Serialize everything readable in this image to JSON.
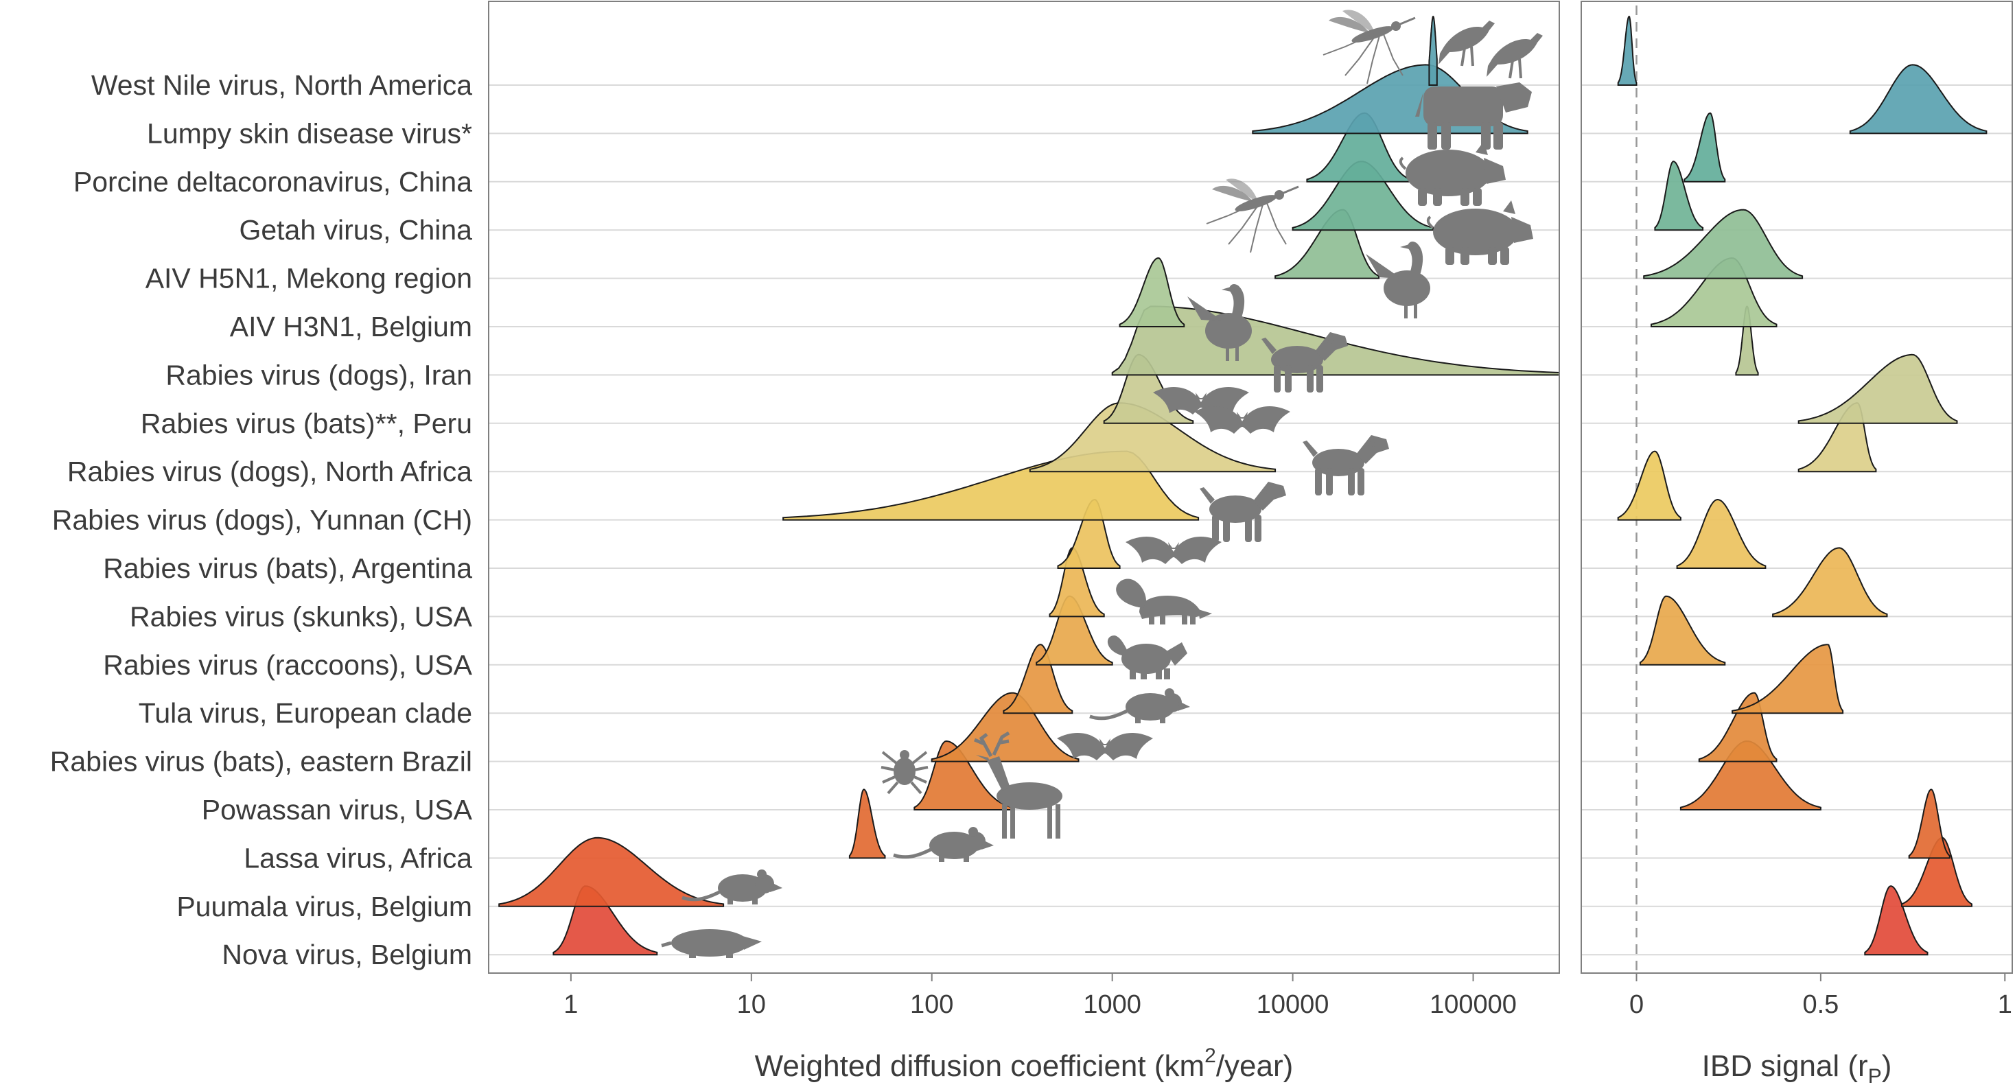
{
  "chart_data": {
    "type": "ridgeline",
    "colors": {
      "gridline": "#d9d9d9",
      "panel_border": "#7f7f7f",
      "silhouette": "#7b7b7b",
      "text": "#3b3b3b",
      "palette": [
        "#5aa2b0",
        "#5aa2b0",
        "#63ae9a",
        "#70b396",
        "#8fbe95",
        "#a9c896",
        "#b6c592",
        "#c9cb93",
        "#dccf8a",
        "#ebca5f",
        "#ecc25e",
        "#ebb656",
        "#e8a84c",
        "#e69742",
        "#e38a3b",
        "#e27a34",
        "#e26a32",
        "#e55a30",
        "#e24b3a"
      ]
    },
    "rows": [
      {
        "label": "West Nile virus, North America",
        "icon": "mosquito-bird-icons",
        "diffusion_mode": 60000,
        "diffusion_range": [
          57000,
          63000
        ],
        "ibd_mode": -0.02,
        "ibd_range": [
          -0.05,
          0.0
        ]
      },
      {
        "label": "Lumpy skin disease virus*",
        "icon": "cow-icon",
        "diffusion_mode": 55000,
        "diffusion_range": [
          6000,
          200000
        ],
        "ibd_mode": 0.75,
        "ibd_range": [
          0.58,
          0.95
        ]
      },
      {
        "label": "Porcine deltacoronavirus, China",
        "icon": "pig-icon",
        "diffusion_mode": 25000,
        "diffusion_range": [
          12000,
          45000
        ],
        "ibd_mode": 0.2,
        "ibd_range": [
          0.13,
          0.24
        ]
      },
      {
        "label": "Getah virus, China",
        "icon": "mosquito-pig-icons",
        "diffusion_mode": 24000,
        "diffusion_range": [
          10000,
          60000
        ],
        "ibd_mode": 0.1,
        "ibd_range": [
          0.05,
          0.18
        ]
      },
      {
        "label": "AIV H5N1, Mekong region",
        "icon": "duck-icon",
        "diffusion_mode": 19000,
        "diffusion_range": [
          8000,
          30000
        ],
        "ibd_mode": 0.29,
        "ibd_range": [
          0.02,
          0.45
        ]
      },
      {
        "label": "AIV H3N1, Belgium",
        "icon": "duck-icon",
        "diffusion_mode": 1800,
        "diffusion_range": [
          1100,
          2500
        ],
        "ibd_mode": 0.26,
        "ibd_range": [
          0.04,
          0.38
        ]
      },
      {
        "label": "Rabies virus (dogs), Iran",
        "icon": "dog-icon",
        "diffusion_mode": 1600,
        "diffusion_range": [
          1000,
          300000
        ],
        "ibd_mode": 0.3,
        "ibd_range": [
          0.27,
          0.33
        ]
      },
      {
        "label": "Rabies virus (bats)**, Peru",
        "icon": "bat-icon",
        "diffusion_mode": 1400,
        "diffusion_range": [
          900,
          2800
        ],
        "ibd_mode": 0.75,
        "ibd_range": [
          0.44,
          0.87
        ]
      },
      {
        "label": "Rabies virus (dogs), North Africa",
        "icon": "dog-icon",
        "diffusion_mode": 1100,
        "diffusion_range": [
          350,
          8000
        ],
        "ibd_mode": 0.6,
        "ibd_range": [
          0.44,
          0.65
        ]
      },
      {
        "label": "Rabies virus (dogs), Yunnan (CH)",
        "icon": "dog-icon",
        "diffusion_mode": 1200,
        "diffusion_range": [
          15,
          3000
        ],
        "ibd_mode": 0.05,
        "ibd_range": [
          -0.05,
          0.12
        ]
      },
      {
        "label": "Rabies virus (bats), Argentina",
        "icon": "bat-icon",
        "diffusion_mode": 800,
        "diffusion_range": [
          500,
          1100
        ],
        "ibd_mode": 0.22,
        "ibd_range": [
          0.11,
          0.35
        ]
      },
      {
        "label": "Rabies virus (skunks), USA",
        "icon": "skunk-icon",
        "diffusion_mode": 600,
        "diffusion_range": [
          450,
          900
        ],
        "ibd_mode": 0.55,
        "ibd_range": [
          0.37,
          0.68
        ]
      },
      {
        "label": "Rabies virus (raccoons), USA",
        "icon": "raccoon-icon",
        "diffusion_mode": 580,
        "diffusion_range": [
          380,
          1000
        ],
        "ibd_mode": 0.08,
        "ibd_range": [
          0.01,
          0.24
        ]
      },
      {
        "label": "Tula virus, European clade",
        "icon": "vole-icon",
        "diffusion_mode": 400,
        "diffusion_range": [
          250,
          600
        ],
        "ibd_mode": 0.52,
        "ibd_range": [
          0.26,
          0.56
        ]
      },
      {
        "label": "Rabies virus (bats), eastern Brazil",
        "icon": "bat-icon",
        "diffusion_mode": 280,
        "diffusion_range": [
          100,
          650
        ],
        "ibd_mode": 0.32,
        "ibd_range": [
          0.17,
          0.38
        ]
      },
      {
        "label": "Powassan virus, USA",
        "icon": "tick-deer-icons",
        "diffusion_mode": 120,
        "diffusion_range": [
          80,
          280
        ],
        "ibd_mode": 0.3,
        "ibd_range": [
          0.12,
          0.5
        ]
      },
      {
        "label": "Lassa virus, Africa",
        "icon": "rat-icon",
        "diffusion_mode": 42,
        "diffusion_range": [
          35,
          55
        ],
        "ibd_mode": 0.8,
        "ibd_range": [
          0.74,
          0.85
        ]
      },
      {
        "label": "Puumala virus, Belgium",
        "icon": "vole-icon",
        "diffusion_mode": 1.4,
        "diffusion_range": [
          0.4,
          7
        ],
        "ibd_mode": 0.83,
        "ibd_range": [
          0.72,
          0.91
        ]
      },
      {
        "label": "Nova virus, Belgium",
        "icon": "mole-icon",
        "diffusion_mode": 1.2,
        "diffusion_range": [
          0.8,
          3
        ],
        "ibd_mode": 0.69,
        "ibd_range": [
          0.62,
          0.79
        ]
      }
    ],
    "left_panel": {
      "xlabel": "Weighted diffusion coefficient (km",
      "xlabel_superscript": "2",
      "xlabel_tail": "/year)",
      "scale": "log10",
      "xlim": [
        0.35,
        300000
      ],
      "ticks": [
        1,
        10,
        100,
        1000,
        10000,
        100000
      ],
      "tick_labels": [
        "1",
        "10",
        "100",
        "1000",
        "10000",
        "100000"
      ]
    },
    "right_panel": {
      "xlabel": "IBD signal (r",
      "xlabel_subscript": "P",
      "xlabel_tail": ")",
      "xlim": [
        -0.15,
        1.02
      ],
      "ticks": [
        0,
        0.5,
        1
      ],
      "tick_labels": [
        "0",
        "0.5",
        "1"
      ],
      "reference_line": 0
    }
  }
}
